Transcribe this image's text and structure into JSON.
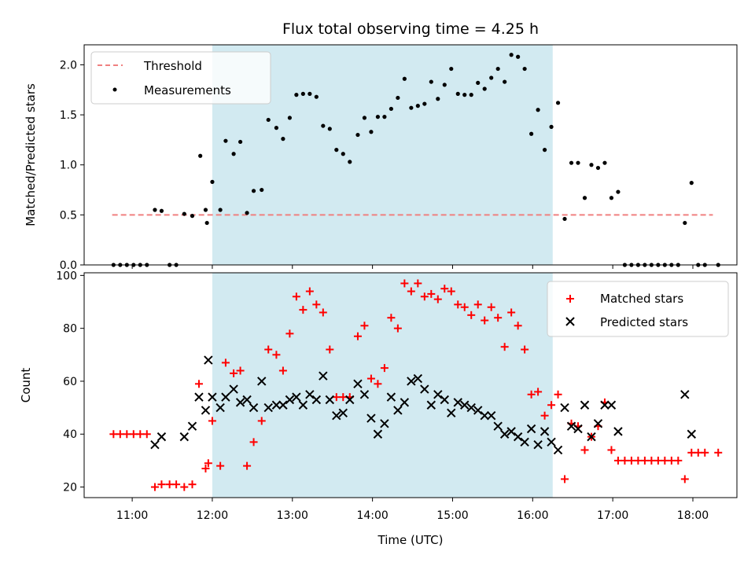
{
  "chart_data": [
    {
      "type": "scatter",
      "title": "Flux total observing time = 4.25 h",
      "ylabel": "Matched/Predicted stars",
      "xlabel": "",
      "x_unit": "hours UTC",
      "xlim": [
        10.4,
        18.55
      ],
      "ylim": [
        0.0,
        2.2
      ],
      "yticks": [
        "0.0",
        "0.5",
        "1.0",
        "1.5",
        "2.0"
      ],
      "grid": false,
      "legend_position": "top-left",
      "observing_window": {
        "start": "12:00",
        "end": "16:15",
        "color": "#add8e6"
      },
      "colors": {
        "threshold": "#f08080",
        "measurements": "#000000",
        "window": "#add8e6"
      },
      "threshold": {
        "name": "Threshold",
        "y": 0.5,
        "x_range": [
          "10:45",
          "18:15"
        ],
        "style": "dashed"
      },
      "series": [
        {
          "name": "Measurements",
          "marker": "dot",
          "points": [
            [
              "10:46",
              0
            ],
            [
              "10:51",
              0
            ],
            [
              "10:56",
              0
            ],
            [
              "11:01",
              0
            ],
            [
              "11:06",
              0
            ],
            [
              "11:11",
              0
            ],
            [
              "11:17",
              0.55
            ],
            [
              "11:22",
              0.54
            ],
            [
              "11:28",
              0
            ],
            [
              "11:33",
              0
            ],
            [
              "11:39",
              0.51
            ],
            [
              "11:45",
              0.49
            ],
            [
              "11:51",
              1.09
            ],
            [
              "11:55",
              0.55
            ],
            [
              "11:56",
              0.42
            ],
            [
              "12:00",
              0.83
            ],
            [
              "12:06",
              0.55
            ],
            [
              "12:10",
              1.24
            ],
            [
              "12:16",
              1.11
            ],
            [
              "12:21",
              1.23
            ],
            [
              "12:26",
              0.52
            ],
            [
              "12:31",
              0.74
            ],
            [
              "12:37",
              0.75
            ],
            [
              "12:42",
              1.45
            ],
            [
              "12:48",
              1.37
            ],
            [
              "12:53",
              1.26
            ],
            [
              "12:58",
              1.47
            ],
            [
              "13:03",
              1.7
            ],
            [
              "13:08",
              1.71
            ],
            [
              "13:13",
              1.71
            ],
            [
              "13:18",
              1.68
            ],
            [
              "13:23",
              1.39
            ],
            [
              "13:28",
              1.36
            ],
            [
              "13:33",
              1.15
            ],
            [
              "13:38",
              1.11
            ],
            [
              "13:43",
              1.03
            ],
            [
              "13:49",
              1.3
            ],
            [
              "13:54",
              1.47
            ],
            [
              "13:59",
              1.33
            ],
            [
              "14:04",
              1.48
            ],
            [
              "14:09",
              1.48
            ],
            [
              "14:14",
              1.56
            ],
            [
              "14:19",
              1.67
            ],
            [
              "14:24",
              1.86
            ],
            [
              "14:29",
              1.57
            ],
            [
              "14:34",
              1.59
            ],
            [
              "14:39",
              1.61
            ],
            [
              "14:44",
              1.83
            ],
            [
              "14:49",
              1.66
            ],
            [
              "14:54",
              1.8
            ],
            [
              "14:59",
              1.96
            ],
            [
              "15:04",
              1.71
            ],
            [
              "15:09",
              1.7
            ],
            [
              "15:14",
              1.7
            ],
            [
              "15:19",
              1.82
            ],
            [
              "15:24",
              1.76
            ],
            [
              "15:29",
              1.87
            ],
            [
              "15:34",
              1.96
            ],
            [
              "15:39",
              1.83
            ],
            [
              "15:44",
              2.1
            ],
            [
              "15:49",
              2.08
            ],
            [
              "15:54",
              1.96
            ],
            [
              "15:59",
              1.31
            ],
            [
              "16:04",
              1.55
            ],
            [
              "16:09",
              1.15
            ],
            [
              "16:14",
              1.38
            ],
            [
              "16:19",
              1.62
            ],
            [
              "16:24",
              0.46
            ],
            [
              "16:29",
              1.02
            ],
            [
              "16:34",
              1.02
            ],
            [
              "16:39",
              0.67
            ],
            [
              "16:44",
              1.0
            ],
            [
              "16:49",
              0.97
            ],
            [
              "16:54",
              1.02
            ],
            [
              "16:59",
              0.67
            ],
            [
              "17:04",
              0.73
            ],
            [
              "17:09",
              0
            ],
            [
              "17:14",
              0
            ],
            [
              "17:19",
              0
            ],
            [
              "17:24",
              0
            ],
            [
              "17:29",
              0
            ],
            [
              "17:34",
              0
            ],
            [
              "17:39",
              0
            ],
            [
              "17:44",
              0
            ],
            [
              "17:49",
              0
            ],
            [
              "17:54",
              0.42
            ],
            [
              "17:59",
              0.82
            ],
            [
              "18:04",
              0
            ],
            [
              "18:09",
              0
            ],
            [
              "18:19",
              0
            ]
          ]
        }
      ]
    },
    {
      "type": "scatter",
      "title": "",
      "ylabel": "Count",
      "xlabel": "Time (UTC)",
      "x_unit": "hours UTC",
      "xlim": [
        10.4,
        18.55
      ],
      "ylim": [
        16,
        101
      ],
      "yticks": [
        "20",
        "40",
        "60",
        "80",
        "100"
      ],
      "xticks": [
        "11:00",
        "12:00",
        "13:00",
        "14:00",
        "15:00",
        "16:00",
        "17:00",
        "18:00"
      ],
      "grid": false,
      "legend_position": "top-right",
      "observing_window": {
        "start": "12:00",
        "end": "16:15",
        "color": "#add8e6"
      },
      "colors": {
        "matched": "#ff0000",
        "predicted": "#000000",
        "window": "#add8e6"
      },
      "series": [
        {
          "name": "Matched stars",
          "marker": "plus",
          "points": [
            [
              "10:46",
              40
            ],
            [
              "10:51",
              40
            ],
            [
              "10:56",
              40
            ],
            [
              "11:01",
              40
            ],
            [
              "11:06",
              40
            ],
            [
              "11:11",
              40
            ],
            [
              "11:17",
              20
            ],
            [
              "11:22",
              21
            ],
            [
              "11:28",
              21
            ],
            [
              "11:33",
              21
            ],
            [
              "11:39",
              20
            ],
            [
              "11:45",
              21
            ],
            [
              "11:50",
              59
            ],
            [
              "11:55",
              27
            ],
            [
              "11:57",
              29
            ],
            [
              "12:00",
              45
            ],
            [
              "12:06",
              28
            ],
            [
              "12:10",
              67
            ],
            [
              "12:16",
              63
            ],
            [
              "12:21",
              64
            ],
            [
              "12:26",
              28
            ],
            [
              "12:31",
              37
            ],
            [
              "12:37",
              45
            ],
            [
              "12:42",
              72
            ],
            [
              "12:48",
              70
            ],
            [
              "12:53",
              64
            ],
            [
              "12:58",
              78
            ],
            [
              "13:03",
              92
            ],
            [
              "13:08",
              87
            ],
            [
              "13:13",
              94
            ],
            [
              "13:18",
              89
            ],
            [
              "13:23",
              86
            ],
            [
              "13:28",
              72
            ],
            [
              "13:33",
              54
            ],
            [
              "13:38",
              54
            ],
            [
              "13:43",
              54
            ],
            [
              "13:49",
              77
            ],
            [
              "13:54",
              81
            ],
            [
              "13:59",
              61
            ],
            [
              "14:04",
              59
            ],
            [
              "14:09",
              65
            ],
            [
              "14:14",
              84
            ],
            [
              "14:19",
              80
            ],
            [
              "14:24",
              97
            ],
            [
              "14:29",
              94
            ],
            [
              "14:34",
              97
            ],
            [
              "14:39",
              92
            ],
            [
              "14:44",
              93
            ],
            [
              "14:49",
              91
            ],
            [
              "14:54",
              95
            ],
            [
              "14:59",
              94
            ],
            [
              "15:04",
              89
            ],
            [
              "15:09",
              88
            ],
            [
              "15:14",
              85
            ],
            [
              "15:19",
              89
            ],
            [
              "15:24",
              83
            ],
            [
              "15:29",
              88
            ],
            [
              "15:34",
              84
            ],
            [
              "15:39",
              73
            ],
            [
              "15:44",
              86
            ],
            [
              "15:49",
              81
            ],
            [
              "15:54",
              72
            ],
            [
              "15:59",
              55
            ],
            [
              "16:04",
              56
            ],
            [
              "16:09",
              47
            ],
            [
              "16:14",
              51
            ],
            [
              "16:19",
              55
            ],
            [
              "16:24",
              23
            ],
            [
              "16:29",
              44
            ],
            [
              "16:34",
              43
            ],
            [
              "16:39",
              34
            ],
            [
              "16:44",
              39
            ],
            [
              "16:49",
              43
            ],
            [
              "16:54",
              52
            ],
            [
              "16:59",
              34
            ],
            [
              "17:04",
              30
            ],
            [
              "17:09",
              30
            ],
            [
              "17:14",
              30
            ],
            [
              "17:19",
              30
            ],
            [
              "17:24",
              30
            ],
            [
              "17:29",
              30
            ],
            [
              "17:34",
              30
            ],
            [
              "17:39",
              30
            ],
            [
              "17:44",
              30
            ],
            [
              "17:49",
              30
            ],
            [
              "17:54",
              23
            ],
            [
              "17:59",
              33
            ],
            [
              "18:04",
              33
            ],
            [
              "18:09",
              33
            ],
            [
              "18:19",
              33
            ]
          ]
        },
        {
          "name": "Predicted stars",
          "marker": "x",
          "points": [
            [
              "11:17",
              36
            ],
            [
              "11:22",
              39
            ],
            [
              "11:39",
              39
            ],
            [
              "11:45",
              43
            ],
            [
              "11:50",
              54
            ],
            [
              "11:55",
              49
            ],
            [
              "11:57",
              68
            ],
            [
              "12:00",
              54
            ],
            [
              "12:06",
              50
            ],
            [
              "12:10",
              54
            ],
            [
              "12:16",
              57
            ],
            [
              "12:21",
              52
            ],
            [
              "12:26",
              53
            ],
            [
              "12:31",
              50
            ],
            [
              "12:37",
              60
            ],
            [
              "12:42",
              50
            ],
            [
              "12:48",
              51
            ],
            [
              "12:53",
              51
            ],
            [
              "12:58",
              53
            ],
            [
              "13:03",
              54
            ],
            [
              "13:08",
              51
            ],
            [
              "13:13",
              55
            ],
            [
              "13:18",
              53
            ],
            [
              "13:23",
              62
            ],
            [
              "13:28",
              53
            ],
            [
              "13:33",
              47
            ],
            [
              "13:38",
              48
            ],
            [
              "13:43",
              53
            ],
            [
              "13:49",
              59
            ],
            [
              "13:54",
              55
            ],
            [
              "13:59",
              46
            ],
            [
              "14:04",
              40
            ],
            [
              "14:09",
              44
            ],
            [
              "14:14",
              54
            ],
            [
              "14:19",
              49
            ],
            [
              "14:24",
              52
            ],
            [
              "14:29",
              60
            ],
            [
              "14:34",
              61
            ],
            [
              "14:39",
              57
            ],
            [
              "14:44",
              51
            ],
            [
              "14:49",
              55
            ],
            [
              "14:54",
              53
            ],
            [
              "14:59",
              48
            ],
            [
              "15:04",
              52
            ],
            [
              "15:09",
              51
            ],
            [
              "15:14",
              50
            ],
            [
              "15:19",
              49
            ],
            [
              "15:24",
              47
            ],
            [
              "15:29",
              47
            ],
            [
              "15:34",
              43
            ],
            [
              "15:39",
              40
            ],
            [
              "15:44",
              41
            ],
            [
              "15:49",
              39
            ],
            [
              "15:54",
              37
            ],
            [
              "15:59",
              42
            ],
            [
              "16:04",
              36
            ],
            [
              "16:09",
              41
            ],
            [
              "16:14",
              37
            ],
            [
              "16:19",
              34
            ],
            [
              "16:24",
              50
            ],
            [
              "16:29",
              43
            ],
            [
              "16:34",
              42
            ],
            [
              "16:39",
              51
            ],
            [
              "16:44",
              39
            ],
            [
              "16:49",
              44
            ],
            [
              "16:54",
              51
            ],
            [
              "16:59",
              51
            ],
            [
              "17:04",
              41
            ],
            [
              "17:54",
              55
            ],
            [
              "17:59",
              40
            ]
          ]
        }
      ]
    }
  ]
}
